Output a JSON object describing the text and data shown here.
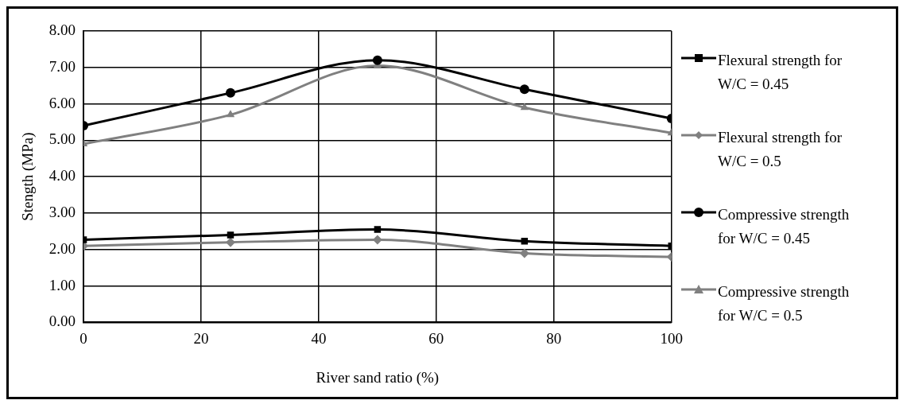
{
  "chart_data": {
    "type": "line",
    "xlabel": "River sand ratio (%)",
    "ylabel": "Stength (MPa)",
    "x": [
      0,
      25,
      50,
      75,
      100
    ],
    "xlim": [
      0,
      100
    ],
    "xticks": [
      0,
      20,
      40,
      60,
      80,
      100
    ],
    "ylim": [
      0,
      8
    ],
    "yticks": [
      {
        "value": 0,
        "label": "0.00"
      },
      {
        "value": 1,
        "label": "1.00"
      },
      {
        "value": 2,
        "label": "2.00"
      },
      {
        "value": 3,
        "label": "3.00"
      },
      {
        "value": 4,
        "label": "4.00"
      },
      {
        "value": 5,
        "label": "5.00"
      },
      {
        "value": 6,
        "label": "6.00"
      },
      {
        "value": 7,
        "label": "7.00"
      },
      {
        "value": 8,
        "label": "8.00"
      }
    ],
    "grid": true,
    "legend": "right",
    "line_style": "solid",
    "series": [
      {
        "name": "Flexural strength for W/C = 0.45",
        "color": "#000000",
        "marker": "square",
        "values": [
          2.27,
          2.4,
          2.55,
          2.23,
          2.1
        ]
      },
      {
        "name": "Flexural strength for W/C = 0.5",
        "color": "#808080",
        "marker": "diamond",
        "values": [
          2.1,
          2.2,
          2.27,
          1.9,
          1.8
        ]
      },
      {
        "name": "Compressive strength for W/C = 0.45",
        "color": "#000000",
        "marker": "circle",
        "values": [
          5.4,
          6.3,
          7.2,
          6.4,
          5.6
        ]
      },
      {
        "name": "Compressive strength for W/C = 0.5",
        "color": "#808080",
        "marker": "triangle",
        "values": [
          4.9,
          5.7,
          7.05,
          5.9,
          5.2
        ]
      }
    ]
  }
}
